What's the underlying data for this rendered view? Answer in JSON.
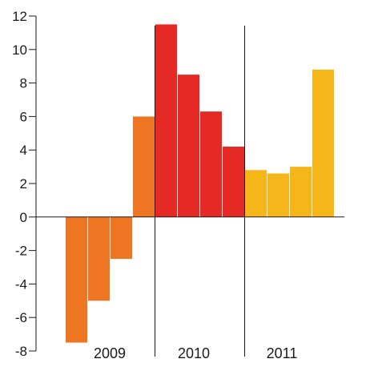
{
  "chart_data": {
    "type": "bar",
    "title": "",
    "xlabel": "",
    "ylabel": "",
    "ylim": [
      -8,
      12
    ],
    "yticks": [
      -8,
      -6,
      -4,
      -2,
      0,
      2,
      4,
      6,
      8,
      10,
      12
    ],
    "grid": false,
    "legend": "none",
    "groups": [
      {
        "label": "2009",
        "color": "#EE7623",
        "values": [
          -7.5,
          -5.0,
          -2.5,
          6.0
        ]
      },
      {
        "label": "2010",
        "color": "#E52A26",
        "values": [
          11.5,
          8.5,
          6.3,
          4.2
        ]
      },
      {
        "label": "2011",
        "color": "#F4B618",
        "values": [
          2.8,
          2.6,
          3.0,
          8.8
        ]
      }
    ]
  },
  "colors": {
    "axis": "#1a1a1a",
    "text": "#1a1a1a",
    "background": "#ffffff"
  }
}
